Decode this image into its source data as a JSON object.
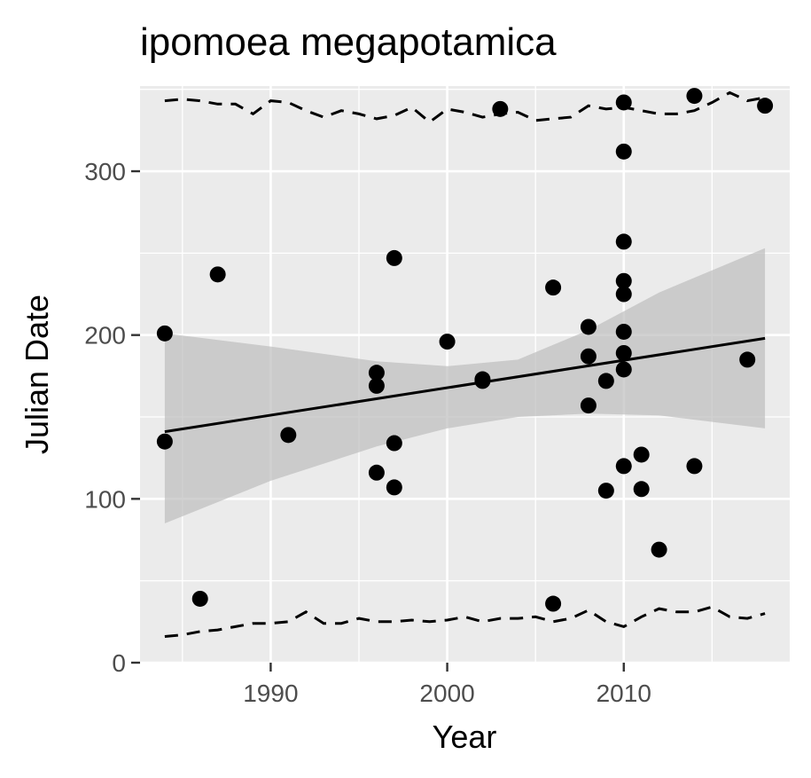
{
  "chart_data": {
    "type": "scatter",
    "title": "ipomoea megapotamica",
    "xlabel": "Year",
    "ylabel": "Julian Date",
    "xlim": [
      1982.6,
      2019.4
    ],
    "ylim": [
      0,
      352
    ],
    "x_ticks": [
      1990,
      2000,
      2010
    ],
    "y_ticks": [
      0,
      100,
      200,
      300
    ],
    "grid": true,
    "colors": {
      "panel": "#ebebeb",
      "grid": "#ffffff",
      "points": "#000000",
      "ribbon": "#bebebe",
      "tick_text": "#4d4d4d"
    },
    "points": [
      {
        "x": 1984,
        "y": 201
      },
      {
        "x": 1984,
        "y": 135
      },
      {
        "x": 1986,
        "y": 39
      },
      {
        "x": 1987,
        "y": 237
      },
      {
        "x": 1991,
        "y": 139
      },
      {
        "x": 1996,
        "y": 177
      },
      {
        "x": 1996,
        "y": 169
      },
      {
        "x": 1996,
        "y": 116
      },
      {
        "x": 1997,
        "y": 247
      },
      {
        "x": 1997,
        "y": 134
      },
      {
        "x": 1997,
        "y": 107
      },
      {
        "x": 2000,
        "y": 196
      },
      {
        "x": 2002,
        "y": 173
      },
      {
        "x": 2002,
        "y": 172
      },
      {
        "x": 2003,
        "y": 338
      },
      {
        "x": 2006,
        "y": 229
      },
      {
        "x": 2006,
        "y": 36
      },
      {
        "x": 2008,
        "y": 205
      },
      {
        "x": 2008,
        "y": 187
      },
      {
        "x": 2008,
        "y": 157
      },
      {
        "x": 2009,
        "y": 172
      },
      {
        "x": 2009,
        "y": 105
      },
      {
        "x": 2010,
        "y": 342
      },
      {
        "x": 2010,
        "y": 312
      },
      {
        "x": 2010,
        "y": 257
      },
      {
        "x": 2010,
        "y": 233
      },
      {
        "x": 2010,
        "y": 225
      },
      {
        "x": 2010,
        "y": 202
      },
      {
        "x": 2010,
        "y": 189
      },
      {
        "x": 2010,
        "y": 179
      },
      {
        "x": 2010,
        "y": 120
      },
      {
        "x": 2011,
        "y": 127
      },
      {
        "x": 2011,
        "y": 106
      },
      {
        "x": 2012,
        "y": 69
      },
      {
        "x": 2014,
        "y": 346
      },
      {
        "x": 2014,
        "y": 120
      },
      {
        "x": 2017,
        "y": 185
      },
      {
        "x": 2018,
        "y": 340
      }
    ],
    "trend_line": {
      "x": [
        1984,
        2018
      ],
      "y": [
        141,
        198
      ]
    },
    "confidence_band": {
      "x": [
        1984,
        1990,
        1996,
        2000,
        2004,
        2008,
        2012,
        2018
      ],
      "upper": [
        201,
        193,
        184,
        181,
        185,
        203,
        226,
        253
      ],
      "lower": [
        85,
        111,
        132,
        143,
        150,
        152,
        151,
        143
      ]
    },
    "upper_dashed": {
      "x": [
        1984,
        1985,
        1986,
        1987,
        1988,
        1989,
        1990,
        1991,
        1992,
        1993,
        1994,
        1995,
        1996,
        1997,
        1998,
        1999,
        2000,
        2001,
        2002,
        2003,
        2004,
        2005,
        2006,
        2007,
        2008,
        2009,
        2010,
        2011,
        2012,
        2013,
        2014,
        2015,
        2016,
        2017,
        2018
      ],
      "y": [
        343,
        344,
        343,
        341,
        341,
        335,
        343,
        342,
        337,
        333,
        337,
        335,
        332,
        334,
        339,
        330,
        338,
        336,
        333,
        335,
        336,
        331,
        332,
        333,
        340,
        338,
        339,
        337,
        335,
        335,
        337,
        342,
        348,
        343,
        345
      ]
    },
    "lower_dashed": {
      "x": [
        1984,
        1985,
        1986,
        1987,
        1988,
        1989,
        1990,
        1991,
        1992,
        1993,
        1994,
        1995,
        1996,
        1997,
        1998,
        1999,
        2000,
        2001,
        2002,
        2003,
        2004,
        2005,
        2006,
        2007,
        2008,
        2009,
        2010,
        2011,
        2012,
        2013,
        2014,
        2015,
        2016,
        2017,
        2018
      ],
      "y": [
        16,
        17,
        19,
        20,
        22,
        24,
        24,
        25,
        31,
        24,
        24,
        27,
        25,
        25,
        26,
        25,
        26,
        28,
        25,
        27,
        27,
        28,
        25,
        27,
        32,
        25,
        22,
        28,
        33,
        31,
        31,
        34,
        28,
        27,
        30
      ]
    }
  }
}
